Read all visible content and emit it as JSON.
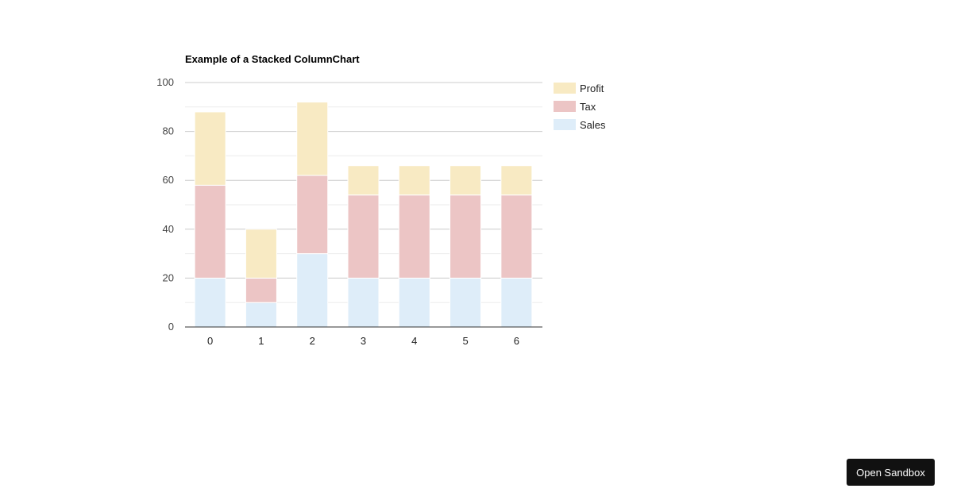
{
  "chart_data": {
    "type": "bar",
    "stacked": true,
    "title": "Example of a Stacked ColumnChart",
    "categories": [
      "0",
      "1",
      "2",
      "3",
      "4",
      "5",
      "6"
    ],
    "series": [
      {
        "name": "Sales",
        "values": [
          20,
          10,
          30,
          20,
          20,
          20,
          20
        ],
        "color": "#deedf9"
      },
      {
        "name": "Tax",
        "values": [
          38,
          10,
          32,
          34,
          34,
          34,
          34
        ],
        "color": "#ecc5c5"
      },
      {
        "name": "Profit",
        "values": [
          30,
          20,
          30,
          12,
          12,
          12,
          12
        ],
        "color": "#f8eac3"
      }
    ],
    "ylim": [
      0,
      100
    ],
    "y_ticks": [
      "0",
      "20",
      "40",
      "60",
      "80",
      "100"
    ],
    "grid": true,
    "legend_position": "right",
    "legend_order": [
      "Profit",
      "Tax",
      "Sales"
    ]
  },
  "sandbox": {
    "label": "Open Sandbox"
  }
}
